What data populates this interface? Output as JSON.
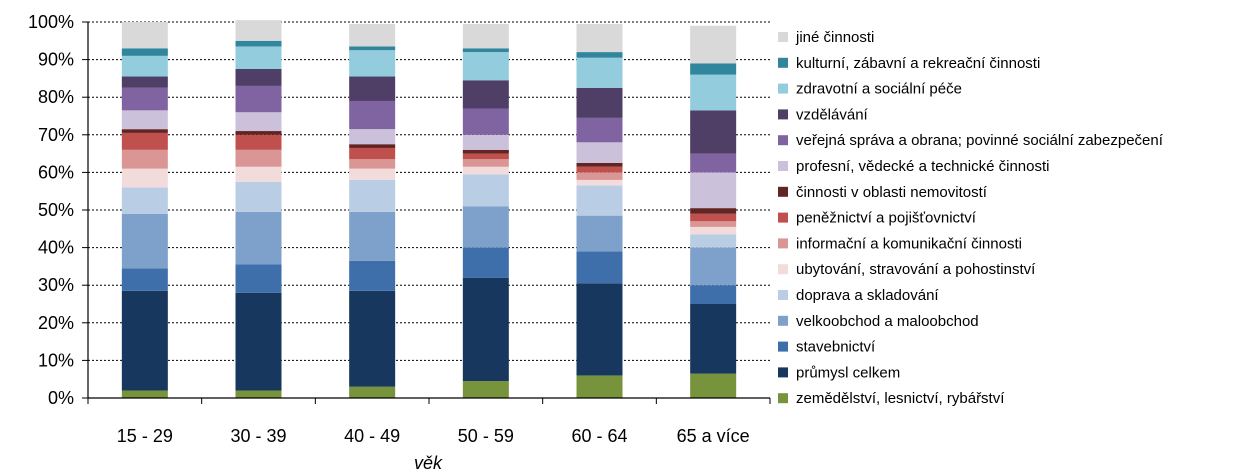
{
  "chart_data": {
    "type": "bar",
    "stacked": true,
    "percent": true,
    "xlabel": "věk",
    "ylabel": "",
    "ylim": [
      0,
      100
    ],
    "yticks": [
      "0%",
      "10%",
      "20%",
      "30%",
      "40%",
      "50%",
      "60%",
      "70%",
      "80%",
      "90%",
      "100%"
    ],
    "grid": "horizontal dotted",
    "legend_position": "right",
    "categories": [
      "15 - 29",
      "30 - 39",
      "40 - 49",
      "50 - 59",
      "60 - 64",
      "65 a více"
    ],
    "series": [
      {
        "name": "zemědělství, lesnictví, rybářství",
        "color": "#77933c",
        "values": [
          2.0,
          2.0,
          3.0,
          4.5,
          6.0,
          6.5
        ]
      },
      {
        "name": "průmysl celkem",
        "color": "#17375e",
        "values": [
          26.5,
          26.0,
          25.5,
          27.5,
          24.5,
          18.5
        ]
      },
      {
        "name": "stavebnictví",
        "color": "#3f6faa",
        "values": [
          6.0,
          7.5,
          8.0,
          8.0,
          8.5,
          5.0
        ]
      },
      {
        "name": "velkoobchod a maloobchod",
        "color": "#7ea1cc",
        "values": [
          14.5,
          14.0,
          13.0,
          11.0,
          9.5,
          10.0
        ]
      },
      {
        "name": "doprava a skladování",
        "color": "#b9cde5",
        "values": [
          7.0,
          8.0,
          8.5,
          8.5,
          8.0,
          3.5
        ]
      },
      {
        "name": "ubytování, stravování a pohostinství",
        "color": "#f2dcdb",
        "values": [
          5.0,
          4.0,
          3.0,
          2.0,
          1.5,
          2.0
        ]
      },
      {
        "name": "informační a komunikační činnosti",
        "color": "#da9694",
        "values": [
          5.0,
          4.5,
          2.5,
          2.0,
          2.0,
          1.5
        ]
      },
      {
        "name": "peněžnictví a pojišťovnictví",
        "color": "#c0504d",
        "values": [
          4.5,
          4.0,
          3.0,
          1.5,
          1.5,
          2.0
        ]
      },
      {
        "name": "činnosti v oblasti nemovitostí",
        "color": "#632523",
        "values": [
          1.0,
          1.0,
          1.0,
          1.0,
          1.0,
          1.5
        ]
      },
      {
        "name": "profesní, vědecké a technické činnosti",
        "color": "#ccc1da",
        "values": [
          5.0,
          5.0,
          4.0,
          4.0,
          5.5,
          9.5
        ]
      },
      {
        "name": "veřejná správa a obrana; povinné sociální zabezpečení",
        "color": "#8064a2",
        "values": [
          6.0,
          7.0,
          7.5,
          7.0,
          6.5,
          5.0
        ]
      },
      {
        "name": "vzdělávání",
        "color": "#4f3e66",
        "values": [
          3.0,
          4.5,
          6.5,
          7.5,
          8.0,
          11.5
        ]
      },
      {
        "name": "zdravotní a sociální péče",
        "color": "#93cddd",
        "values": [
          5.5,
          6.0,
          7.0,
          7.5,
          8.0,
          9.5
        ]
      },
      {
        "name": "kulturní, zábavní a rekreační činnosti",
        "color": "#31859c",
        "values": [
          2.0,
          1.5,
          1.0,
          1.0,
          1.5,
          3.0
        ]
      },
      {
        "name": "jiné činnosti",
        "color": "#d9d9d9",
        "values": [
          7.0,
          5.5,
          6.0,
          6.5,
          7.5,
          10.0
        ]
      }
    ]
  }
}
